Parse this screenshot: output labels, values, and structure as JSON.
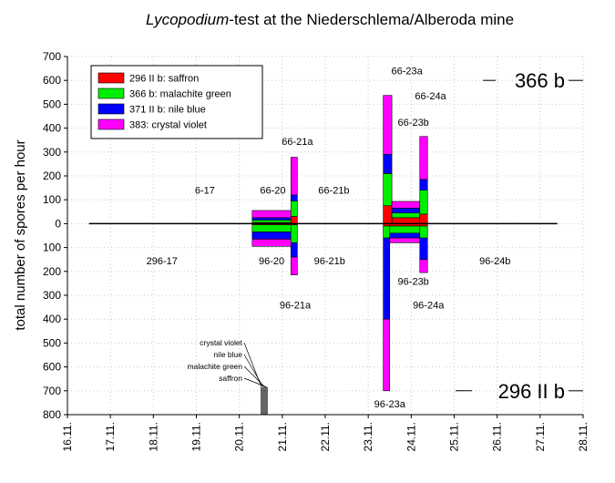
{
  "chart_data": {
    "type": "bar",
    "title": {
      "italic": "Lycopodium",
      "rest": "-test at the Niederschlema/Alberoda mine"
    },
    "ylabel": "total number of spores per hour",
    "xlabel": "",
    "ylim": [
      -800,
      700
    ],
    "y_ticks": [
      {
        "value": 700,
        "label": "700"
      },
      {
        "value": 600,
        "label": "600"
      },
      {
        "value": 500,
        "label": "500"
      },
      {
        "value": 400,
        "label": "400"
      },
      {
        "value": 300,
        "label": "300"
      },
      {
        "value": 200,
        "label": "200"
      },
      {
        "value": 100,
        "label": "100"
      },
      {
        "value": 0,
        "label": "0"
      },
      {
        "value": -100,
        "label": "100"
      },
      {
        "value": -200,
        "label": "200"
      },
      {
        "value": -300,
        "label": "300"
      },
      {
        "value": -400,
        "label": "400"
      },
      {
        "value": -500,
        "label": "500"
      },
      {
        "value": -600,
        "label": "600"
      },
      {
        "value": -700,
        "label": "700"
      },
      {
        "value": -800,
        "label": "800"
      }
    ],
    "xlim": [
      16,
      28
    ],
    "x_ticks": [
      {
        "value": 16,
        "label": "16.11."
      },
      {
        "value": 17,
        "label": "17.11."
      },
      {
        "value": 18,
        "label": "18.11."
      },
      {
        "value": 19,
        "label": "19.11."
      },
      {
        "value": 20,
        "label": "20.11."
      },
      {
        "value": 21,
        "label": "21.11."
      },
      {
        "value": 22,
        "label": "22.11."
      },
      {
        "value": 23,
        "label": "23.11."
      },
      {
        "value": 24,
        "label": "24.11."
      },
      {
        "value": 25,
        "label": "25.11."
      },
      {
        "value": 26,
        "label": "26.11."
      },
      {
        "value": 27,
        "label": "27.11."
      },
      {
        "value": 28,
        "label": "28.11."
      }
    ],
    "grid": "dotted",
    "legend_position": "top-left",
    "series": [
      {
        "name": "296 II b: saffron",
        "color": "#ff0000"
      },
      {
        "name": "366 b: malachite green",
        "color": "#00ee00"
      },
      {
        "name": "371 II b: nile blue",
        "color": "#0000ff"
      },
      {
        "name": "383: crystal violet",
        "color": "#ff00ff"
      }
    ],
    "zero_line": [
      {
        "x0": 16.5,
        "x1": 27.4
      }
    ],
    "bars": [
      {
        "x0": 20.3,
        "x1": 21.2,
        "segments": [
          {
            "series": 0,
            "from": 0,
            "to": 5
          },
          {
            "series": 1,
            "from": 5,
            "to": 15
          },
          {
            "series": 2,
            "from": 15,
            "to": 25
          },
          {
            "series": 3,
            "from": 25,
            "to": 55
          }
        ]
      },
      {
        "x0": 21.2,
        "x1": 21.35,
        "segments": [
          {
            "series": 0,
            "from": 0,
            "to": 30
          },
          {
            "series": 1,
            "from": 30,
            "to": 95
          },
          {
            "series": 2,
            "from": 95,
            "to": 120
          },
          {
            "series": 3,
            "from": 120,
            "to": 278
          }
        ]
      },
      {
        "x0": 23.35,
        "x1": 23.55,
        "segments": [
          {
            "series": 0,
            "from": 0,
            "to": 75
          },
          {
            "series": 1,
            "from": 75,
            "to": 210
          },
          {
            "series": 2,
            "from": 210,
            "to": 290
          },
          {
            "series": 3,
            "from": 290,
            "to": 537
          }
        ]
      },
      {
        "x0": 23.55,
        "x1": 24.2,
        "segments": [
          {
            "series": 0,
            "from": 0,
            "to": 25
          },
          {
            "series": 1,
            "from": 25,
            "to": 45
          },
          {
            "series": 2,
            "from": 45,
            "to": 65
          },
          {
            "series": 3,
            "from": 65,
            "to": 93
          }
        ]
      },
      {
        "x0": 24.2,
        "x1": 24.38,
        "segments": [
          {
            "series": 0,
            "from": 0,
            "to": 40
          },
          {
            "series": 1,
            "from": 40,
            "to": 140
          },
          {
            "series": 2,
            "from": 140,
            "to": 185
          },
          {
            "series": 3,
            "from": 185,
            "to": 365
          }
        ]
      },
      {
        "x0": 20.3,
        "x1": 21.2,
        "segments": [
          {
            "series": 0,
            "from": 0,
            "to": -5
          },
          {
            "series": 1,
            "from": -5,
            "to": -35
          },
          {
            "series": 2,
            "from": -35,
            "to": -65
          },
          {
            "series": 3,
            "from": -65,
            "to": -95
          }
        ]
      },
      {
        "x0": 21.2,
        "x1": 21.35,
        "segments": [
          {
            "series": 0,
            "from": 0,
            "to": -5
          },
          {
            "series": 1,
            "from": -5,
            "to": -80
          },
          {
            "series": 2,
            "from": -80,
            "to": -140
          },
          {
            "series": 3,
            "from": -140,
            "to": -215
          }
        ]
      },
      {
        "x0": 23.35,
        "x1": 23.5,
        "segments": [
          {
            "series": 0,
            "from": 0,
            "to": -10
          },
          {
            "series": 1,
            "from": -10,
            "to": -60
          },
          {
            "series": 2,
            "from": -60,
            "to": -400
          },
          {
            "series": 3,
            "from": -400,
            "to": -700
          }
        ]
      },
      {
        "x0": 23.5,
        "x1": 24.2,
        "segments": [
          {
            "series": 0,
            "from": 0,
            "to": -10
          },
          {
            "series": 1,
            "from": -10,
            "to": -40
          },
          {
            "series": 2,
            "from": -40,
            "to": -60
          },
          {
            "series": 3,
            "from": -60,
            "to": -80
          }
        ]
      },
      {
        "x0": 24.2,
        "x1": 24.38,
        "segments": [
          {
            "series": 0,
            "from": 0,
            "to": -10
          },
          {
            "series": 1,
            "from": -10,
            "to": -60
          },
          {
            "series": 2,
            "from": -60,
            "to": -150
          },
          {
            "series": 3,
            "from": -150,
            "to": -205
          }
        ]
      }
    ],
    "annotations": [
      {
        "text": "6-17",
        "x": 19.2,
        "y": 140
      },
      {
        "text": "66-20",
        "x": 20.78,
        "y": 140
      },
      {
        "text": "66-21a",
        "x": 21.35,
        "y": 345
      },
      {
        "text": "66-21b",
        "x": 22.2,
        "y": 140
      },
      {
        "text": "66-23a",
        "x": 23.9,
        "y": 640
      },
      {
        "text": "66-24a",
        "x": 24.45,
        "y": 535
      },
      {
        "text": "66-23b",
        "x": 24.05,
        "y": 425
      },
      {
        "text": "296-17",
        "x": 18.2,
        "y": -155
      },
      {
        "text": "96-20",
        "x": 20.75,
        "y": -155
      },
      {
        "text": "96-21b",
        "x": 22.1,
        "y": -155
      },
      {
        "text": "96-24b",
        "x": 25.95,
        "y": -155
      },
      {
        "text": "96-21a",
        "x": 21.3,
        "y": -340
      },
      {
        "text": "96-23b",
        "x": 24.05,
        "y": -240
      },
      {
        "text": "96-24a",
        "x": 24.4,
        "y": -340
      },
      {
        "text": "96-23a",
        "x": 23.5,
        "y": -755
      }
    ],
    "corner_labels": [
      {
        "text": "366 b",
        "position": "top-right",
        "y": 600
      },
      {
        "text": "296 II b",
        "position": "bottom-right",
        "y": -700
      }
    ],
    "indicator_labels": [
      "crystal violet",
      "nile blue",
      "malachite green",
      "saffron"
    ]
  }
}
